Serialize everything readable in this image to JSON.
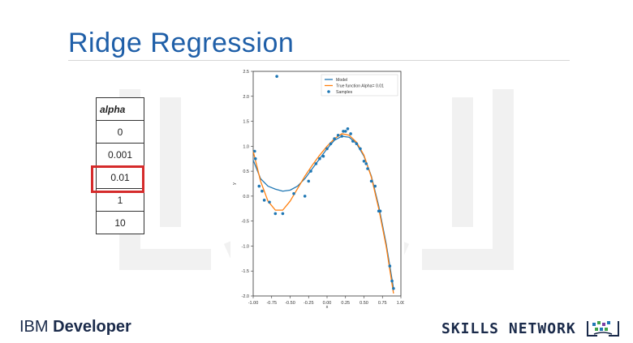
{
  "slide": {
    "title": "Ridge Regression",
    "alpha_table": {
      "header": "alpha",
      "values": [
        "0",
        "0.001",
        "0.01",
        "1",
        "10"
      ],
      "highlighted_value": "0.01"
    },
    "footer": {
      "left_regular": "IBM ",
      "left_bold": "Developer",
      "right": "SKILLS NETWORK"
    },
    "colors": {
      "title": "#1f5fa8",
      "highlight": "#d52b2b",
      "model": "#1f77b4",
      "true_function": "#ff7f0e",
      "samples": "#1f77b4"
    }
  },
  "chart_data": {
    "type": "line",
    "xlabel": "x",
    "ylabel": "y",
    "xlim": [
      -1.0,
      1.0
    ],
    "ylim": [
      -2.0,
      2.5
    ],
    "xticks": [
      "-1.00",
      "-0.75",
      "-0.50",
      "-0.25",
      "0.00",
      "0.25",
      "0.50",
      "0.75",
      "1.00"
    ],
    "yticks": [
      "-2.0",
      "-1.5",
      "-1.0",
      "-0.5",
      "0.0",
      "0.5",
      "1.0",
      "1.5",
      "2.0",
      "2.5"
    ],
    "legend_position": "top-right",
    "series": [
      {
        "name": "Model",
        "kind": "line",
        "x": [
          -1.0,
          -0.9,
          -0.8,
          -0.7,
          -0.6,
          -0.5,
          -0.4,
          -0.3,
          -0.2,
          -0.1,
          0.0,
          0.1,
          0.2,
          0.3,
          0.4,
          0.5,
          0.6,
          0.7,
          0.8,
          0.9
        ],
        "y": [
          0.72,
          0.35,
          0.2,
          0.14,
          0.1,
          0.12,
          0.2,
          0.35,
          0.55,
          0.75,
          0.95,
          1.12,
          1.2,
          1.18,
          1.05,
          0.8,
          0.4,
          -0.2,
          -0.95,
          -1.85
        ]
      },
      {
        "name": "True function Alpha= 0.01",
        "kind": "line",
        "x": [
          -1.0,
          -0.9,
          -0.8,
          -0.7,
          -0.6,
          -0.5,
          -0.4,
          -0.3,
          -0.2,
          -0.1,
          0.0,
          0.1,
          0.2,
          0.3,
          0.4,
          0.5,
          0.6,
          0.7,
          0.8,
          0.9
        ],
        "y": [
          0.9,
          0.3,
          -0.1,
          -0.28,
          -0.28,
          -0.1,
          0.15,
          0.4,
          0.62,
          0.82,
          1.0,
          1.15,
          1.25,
          1.22,
          1.08,
          0.82,
          0.38,
          -0.25,
          -1.0,
          -1.95
        ]
      },
      {
        "name": "Samples",
        "kind": "scatter",
        "x": [
          -0.98,
          -0.97,
          -0.92,
          -0.88,
          -0.85,
          -0.78,
          -0.7,
          -0.6,
          -0.45,
          -0.3,
          -0.25,
          -0.22,
          -0.15,
          -0.1,
          -0.05,
          0.0,
          0.05,
          0.1,
          0.15,
          0.2,
          0.22,
          0.25,
          0.28,
          0.32,
          0.35,
          0.4,
          0.45,
          0.5,
          0.53,
          0.55,
          0.6,
          0.65,
          0.7,
          0.72,
          0.85,
          0.88,
          0.9,
          -0.68
        ],
        "y": [
          0.9,
          0.75,
          0.2,
          0.1,
          -0.08,
          -0.12,
          -0.35,
          -0.35,
          0.05,
          0.0,
          0.3,
          0.5,
          0.65,
          0.75,
          0.8,
          0.95,
          1.05,
          1.15,
          1.22,
          1.2,
          1.3,
          1.3,
          1.35,
          1.25,
          1.1,
          1.05,
          0.95,
          0.7,
          0.65,
          0.55,
          0.3,
          0.2,
          -0.3,
          -0.3,
          -1.4,
          -1.7,
          -1.85,
          2.4
        ]
      }
    ]
  }
}
